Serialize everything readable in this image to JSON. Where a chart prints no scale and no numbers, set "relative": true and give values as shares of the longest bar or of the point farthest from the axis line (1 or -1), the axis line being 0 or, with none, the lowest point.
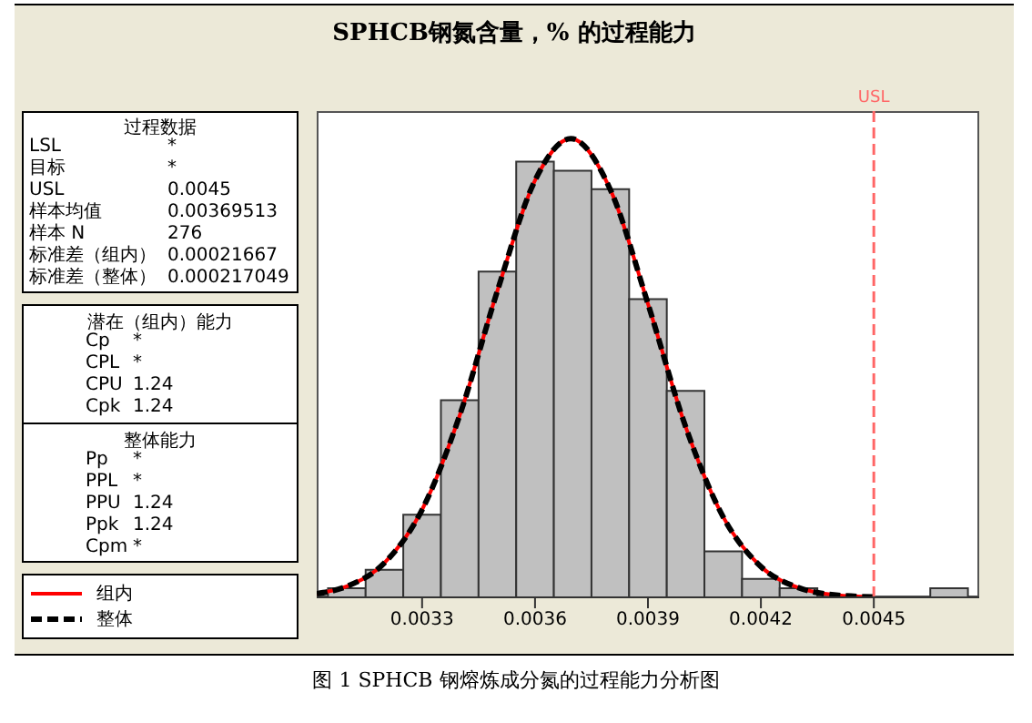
{
  "chart_data": {
    "type": "histogram",
    "title": "SPHCB钢氮含量，% 的过程能力",
    "relative": true,
    "bins": [
      0.00305,
      0.00315,
      0.00325,
      0.00335,
      0.00345,
      0.00355,
      0.00365,
      0.00375,
      0.00385,
      0.00395,
      0.00405,
      0.00415,
      0.00425,
      0.00435,
      0.00445,
      0.00455,
      0.00465,
      0.00475
    ],
    "values": [
      0.02,
      0.06,
      0.18,
      0.43,
      0.71,
      0.95,
      0.93,
      0.89,
      0.65,
      0.45,
      0.1,
      0.04,
      0.02,
      0,
      0,
      0,
      0.02
    ],
    "color": "#c0c0c0",
    "series": [
      {
        "name": "组内",
        "type": "line",
        "color": "#ff0000",
        "line_style": "solid",
        "x": [
          0.00302,
          0.0031,
          0.0032,
          0.0033,
          0.0034,
          0.0035,
          0.0036,
          0.003695,
          0.0038,
          0.0039,
          0.004,
          0.0041,
          0.0042,
          0.0043,
          0.0044,
          0.0045
        ],
        "values": [
          0.008,
          0.024,
          0.075,
          0.191,
          0.397,
          0.668,
          0.909,
          1,
          0.889,
          0.64,
          0.372,
          0.175,
          0.067,
          0.021,
          0.005,
          0.001
        ]
      },
      {
        "name": "整体",
        "type": "line",
        "color": "#000000",
        "line_style": "dashed",
        "x": [
          0.00302,
          0.0031,
          0.0032,
          0.0033,
          0.0034,
          0.0035,
          0.0036,
          0.003695,
          0.0038,
          0.0039,
          0.004,
          0.0041,
          0.0042,
          0.0043,
          0.0044,
          0.0045
        ],
        "values": [
          0.008,
          0.024,
          0.075,
          0.191,
          0.397,
          0.668,
          0.909,
          1,
          0.889,
          0.64,
          0.372,
          0.175,
          0.067,
          0.021,
          0.005,
          0.001
        ]
      }
    ],
    "xlim": [
      0.00302,
      0.00478
    ],
    "xticks": [
      0.0033,
      0.0036,
      0.0039,
      0.0042,
      0.0045
    ],
    "ref_lines": [
      {
        "axis": "x",
        "value": 0.0045,
        "label": "USL",
        "color": "#ff6666",
        "line_style": "dashed"
      }
    ],
    "legend": "bottom left",
    "annotations": [
      "过程数据",
      "LSL",
      "*",
      "目标",
      "*",
      "USL",
      "0.0045",
      "样本均值",
      "0.00369513",
      "样本 N",
      "276",
      "标准差（组内）",
      "0.00021667",
      "标准差（整体）",
      "0.000217049",
      "潜在（组内）能力",
      "Cp",
      "*",
      "CPL",
      "*",
      "CPU",
      "1.24",
      "Cpk",
      "1.24",
      "整体能力",
      "Pp",
      "*",
      "PPL",
      "*",
      "PPU",
      "1.24",
      "Ppk",
      "1.24",
      "Cpm",
      "*",
      "图 1 SPHCB 钢熔炼成分氮的过程能力分析图"
    ]
  }
}
